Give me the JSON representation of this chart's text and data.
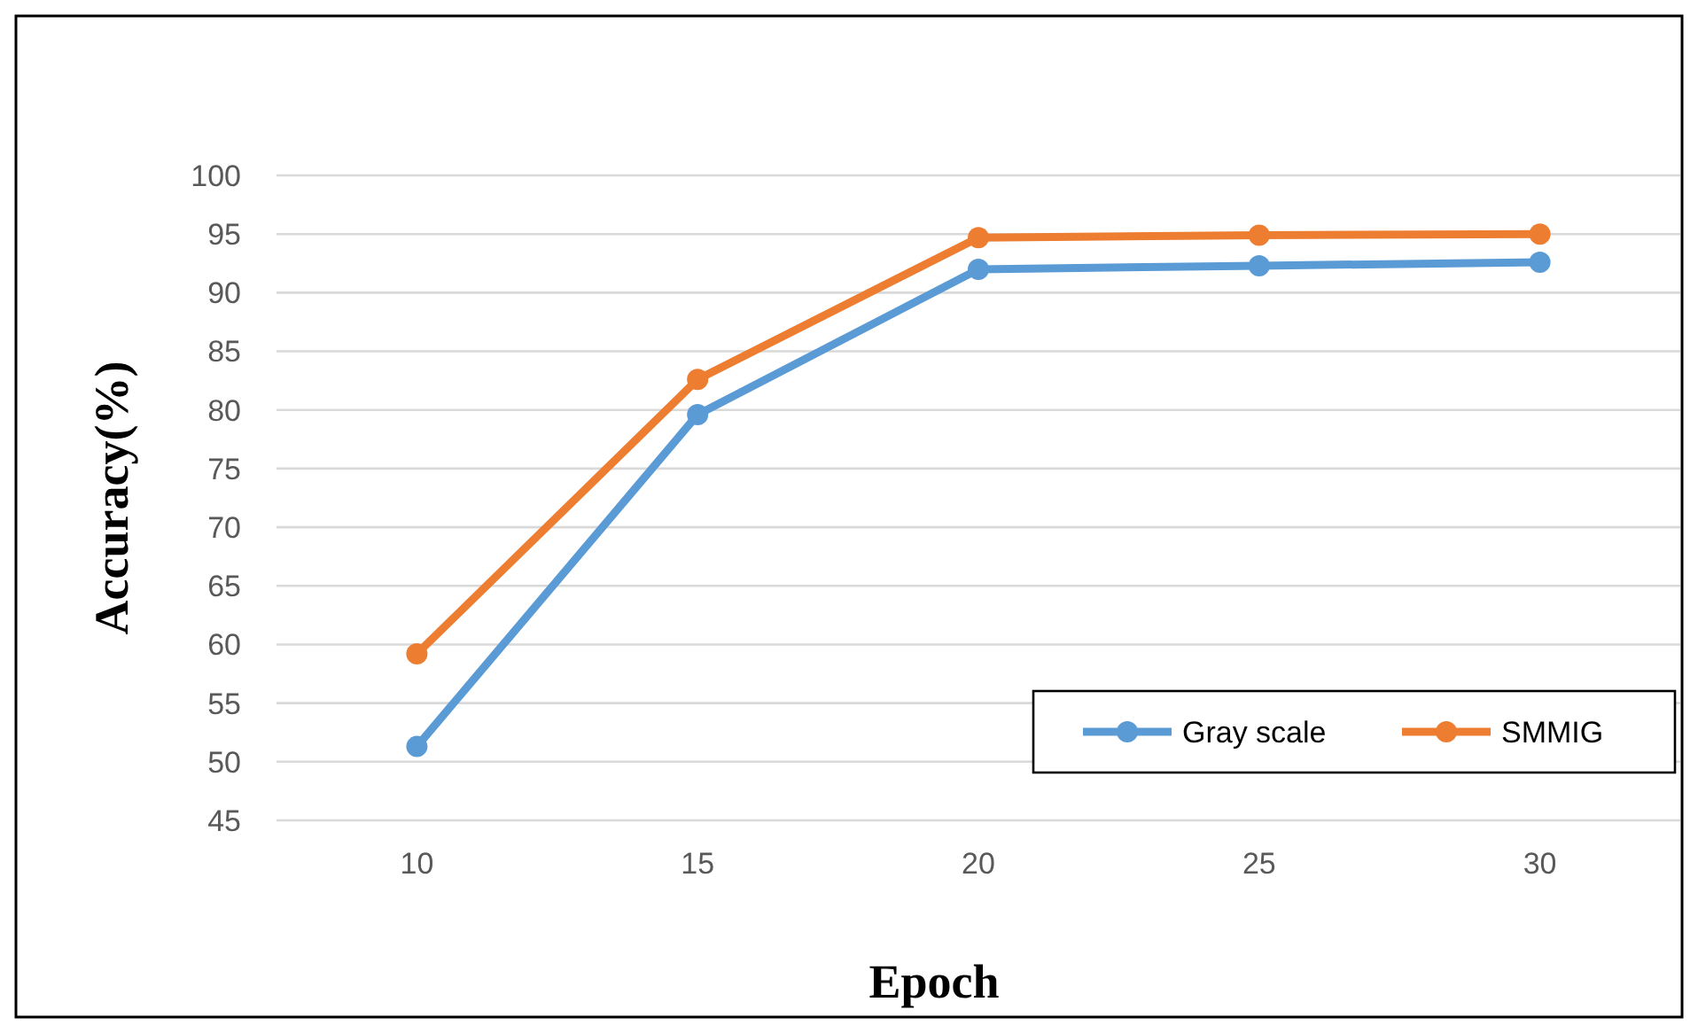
{
  "chart_data": {
    "type": "line",
    "xlabel": "Epoch",
    "ylabel": "Accuracy(%)",
    "categories": [
      "10",
      "15",
      "20",
      "25",
      "30"
    ],
    "series": [
      {
        "name": "Gray scale",
        "color": "#5b9bd5",
        "values": [
          51.3,
          79.6,
          92.0,
          92.3,
          92.6
        ]
      },
      {
        "name": "SMMIG",
        "color": "#ed7d31",
        "values": [
          59.2,
          82.6,
          94.7,
          94.9,
          95.0
        ]
      }
    ],
    "ylim": [
      45,
      100
    ],
    "yticks": [
      45,
      50,
      55,
      60,
      65,
      70,
      75,
      80,
      85,
      90,
      95,
      100
    ],
    "grid": "y",
    "legend": "bottom right",
    "marker": "circle",
    "line_style": "solid"
  }
}
